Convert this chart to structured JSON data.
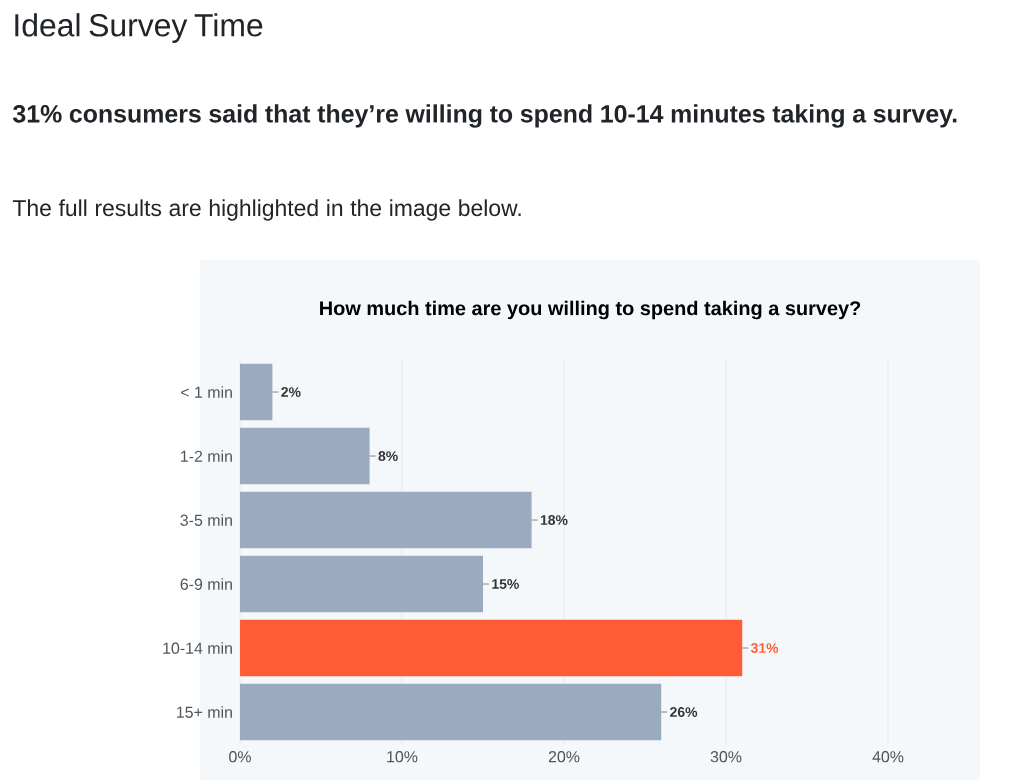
{
  "chart_data": {
    "type": "bar",
    "orientation": "horizontal",
    "title": "How much time are you willing to spend taking a survey?",
    "annotations": [
      "Ideal Survey Time",
      "31% consumers said that they’re willing to spend 10-14 minutes taking a survey.",
      "The full results are highlighted in the image below."
    ],
    "categories": [
      "< 1 min",
      "1-2 min",
      "3-5 min",
      "6-9 min",
      "10-14 min",
      "15+ min"
    ],
    "values": [
      2,
      8,
      18,
      15,
      31,
      26
    ],
    "value_labels": [
      "2%",
      "8%",
      "18%",
      "15%",
      "31%",
      "26%"
    ],
    "color": "#9aabc0",
    "colors": [
      "#9aabc0",
      "#9aabc0",
      "#9aabc0",
      "#9aabc0",
      "#ff5c35",
      "#9aabc0"
    ],
    "xlim": [
      0,
      40
    ],
    "xticks": [
      {
        "value": 0,
        "label": "0%"
      },
      {
        "value": 10,
        "label": "10%"
      },
      {
        "value": 20,
        "label": "20%"
      },
      {
        "value": 30,
        "label": "30%"
      },
      {
        "value": 40,
        "label": "40%"
      }
    ],
    "grid": "x"
  }
}
